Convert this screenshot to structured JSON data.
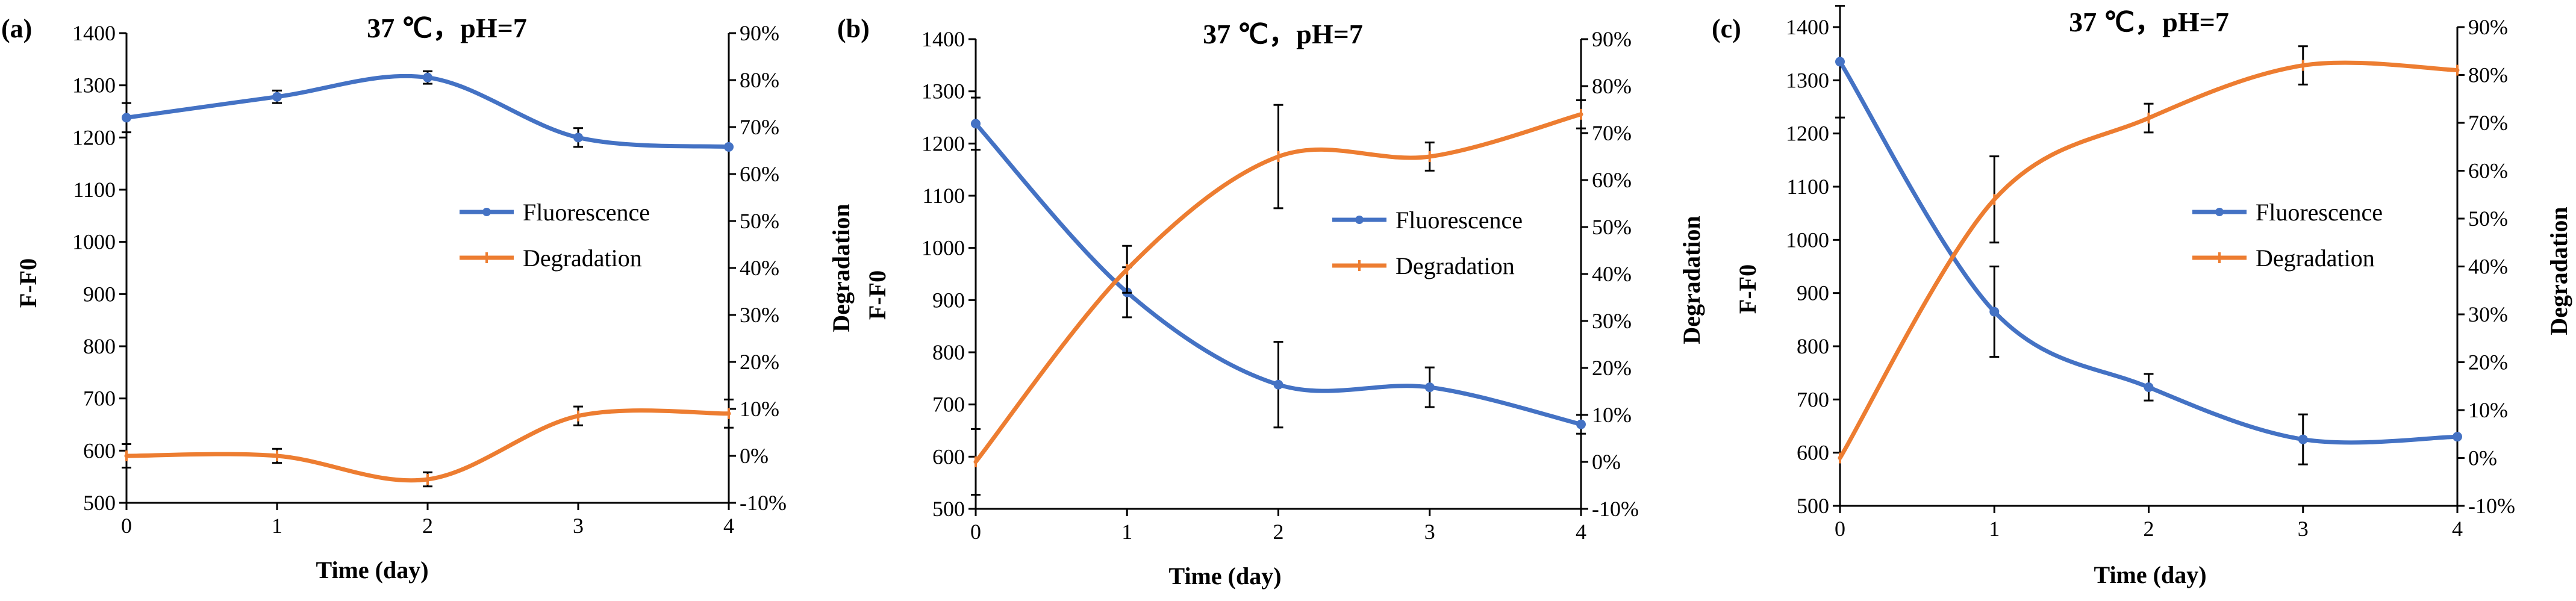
{
  "colors": {
    "fluorescence": "#4472C4",
    "degradation": "#ED7D31",
    "axis": "#000000"
  },
  "chart_data": [
    {
      "type": "line",
      "panel_label": "(a)",
      "title": "37 ℃，pH=7",
      "xlabel": "Time (day)",
      "ylabel": "F-F0",
      "y2label": "Degradation",
      "x": [
        0,
        1,
        2,
        3,
        4
      ],
      "x_ticks": [
        "0",
        "1",
        "2",
        "3",
        "4"
      ],
      "xlim": [
        0,
        4
      ],
      "ylim": [
        500,
        1400
      ],
      "y_ticks": [
        "500",
        "600",
        "700",
        "800",
        "900",
        "1000",
        "1100",
        "1200",
        "1300",
        "1400"
      ],
      "y2lim": [
        -10,
        90
      ],
      "y2_ticks": [
        "-10%",
        "0%",
        "10%",
        "20%",
        "30%",
        "40%",
        "50%",
        "60%",
        "70%",
        "80%",
        "90%"
      ],
      "legend_position": "center-right",
      "series": [
        {
          "name": "Fluorescence",
          "axis": "left",
          "color": "#4472C4",
          "marker": "circle",
          "values": [
            1238,
            1278,
            1315,
            1200,
            1182
          ],
          "errors": [
            28,
            12,
            12,
            18,
            0
          ]
        },
        {
          "name": "Degradation",
          "axis": "right",
          "color": "#ED7D31",
          "marker": "dash",
          "values": [
            0,
            0,
            -5,
            8.5,
            9
          ],
          "errors": [
            2.5,
            1.5,
            1.5,
            2,
            3
          ]
        }
      ]
    },
    {
      "type": "line",
      "panel_label": "(b)",
      "title": "37 ℃，pH=7",
      "xlabel": "Time (day)",
      "ylabel": "F-F0",
      "y2label": "Degradation",
      "x": [
        0,
        1,
        2,
        3,
        4
      ],
      "x_ticks": [
        "0",
        "1",
        "2",
        "3",
        "4"
      ],
      "xlim": [
        0,
        4
      ],
      "ylim": [
        500,
        1400
      ],
      "y_ticks": [
        "500",
        "600",
        "700",
        "800",
        "900",
        "1000",
        "1100",
        "1200",
        "1300",
        "1400"
      ],
      "y2lim": [
        -10,
        90
      ],
      "y2_ticks": [
        "-10%",
        "0%",
        "10%",
        "20%",
        "30%",
        "40%",
        "50%",
        "60%",
        "70%",
        "80%",
        "90%"
      ],
      "legend_position": "center-right",
      "series": [
        {
          "name": "Fluorescence",
          "axis": "left",
          "color": "#4472C4",
          "marker": "circle",
          "values": [
            1238,
            915,
            738,
            733,
            662
          ],
          "errors": [
            50,
            48,
            82,
            38,
            18
          ]
        },
        {
          "name": "Degradation",
          "axis": "right",
          "color": "#ED7D31",
          "marker": "dash",
          "values": [
            0,
            41,
            65,
            65,
            74
          ],
          "errors": [
            7,
            5,
            11,
            3,
            3
          ]
        }
      ]
    },
    {
      "type": "line",
      "panel_label": "(c)",
      "title": "37 ℃，pH=7",
      "xlabel": "Time (day)",
      "ylabel": "F-F0",
      "y2label": "Degradation",
      "x": [
        0,
        1,
        2,
        3,
        4
      ],
      "x_ticks": [
        "0",
        "1",
        "2",
        "3",
        "4"
      ],
      "xlim": [
        0,
        4
      ],
      "ylim": [
        500,
        1400
      ],
      "y_ticks": [
        "500",
        "600",
        "700",
        "800",
        "900",
        "1000",
        "1100",
        "1200",
        "1300",
        "1400"
      ],
      "y2lim": [
        -10,
        90
      ],
      "y2_ticks": [
        "-10%",
        "0%",
        "10%",
        "20%",
        "30%",
        "40%",
        "50%",
        "60%",
        "70%",
        "80%",
        "90%"
      ],
      "legend_position": "center-right",
      "series": [
        {
          "name": "Fluorescence",
          "axis": "left",
          "color": "#4472C4",
          "marker": "circle",
          "values": [
            1335,
            865,
            723,
            625,
            630
          ],
          "errors": [
            105,
            85,
            25,
            47,
            0
          ]
        },
        {
          "name": "Degradation",
          "axis": "right",
          "color": "#ED7D31",
          "marker": "dash",
          "values": [
            0,
            54,
            71,
            82,
            81
          ],
          "errors": [
            0,
            9,
            3,
            4,
            0
          ]
        }
      ]
    }
  ]
}
